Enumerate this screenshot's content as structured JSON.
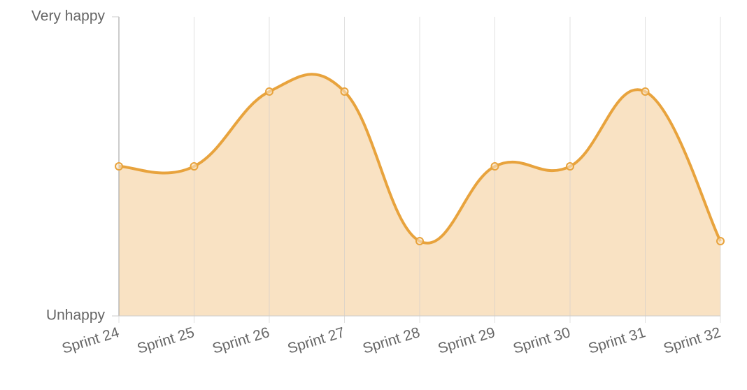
{
  "chart_data": {
    "type": "line",
    "categories": [
      "Sprint 24",
      "Sprint 25",
      "Sprint 26",
      "Sprint 27",
      "Sprint 28",
      "Sprint 29",
      "Sprint 30",
      "Sprint 31",
      "Sprint 32"
    ],
    "values": [
      2,
      2,
      3,
      3,
      1,
      2,
      2,
      3,
      1
    ],
    "color": "#e8a33d",
    "fill": "#f9e2c3",
    "ylim": [
      0,
      4
    ],
    "yticks": [
      {
        "value": 0,
        "label": "Unhappy"
      },
      {
        "value": 4,
        "label": "Very happy"
      }
    ],
    "grid": true
  }
}
